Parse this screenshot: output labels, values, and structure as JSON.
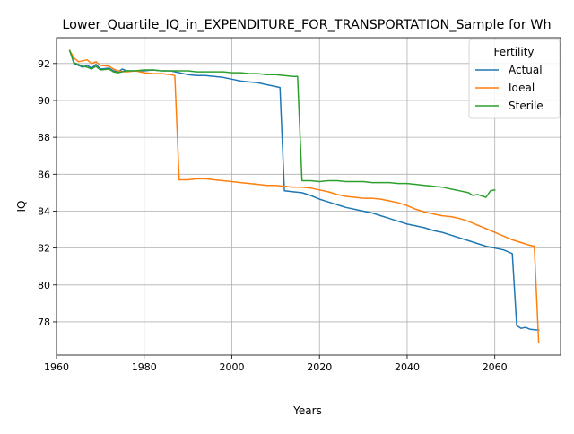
{
  "chart_data": {
    "type": "line",
    "title": "Lower_Quartile_IQ_in_EXPENDITURE_FOR_TRANSPORTATION_Sample for Wh",
    "xlabel": "Years",
    "ylabel": "IQ",
    "xlim": [
      1960,
      2075
    ],
    "ylim": [
      76.2,
      93.4
    ],
    "xticks": [
      1960,
      1980,
      2000,
      2020,
      2040,
      2060
    ],
    "yticks": [
      78,
      80,
      82,
      84,
      86,
      88,
      90,
      92
    ],
    "grid": true,
    "legend": {
      "title": "Fertility",
      "position": "top-right"
    },
    "series": [
      {
        "name": "Actual",
        "color": "#1f77b4",
        "points": [
          [
            1963,
            92.7
          ],
          [
            1964,
            92.0
          ],
          [
            1966,
            91.8
          ],
          [
            1967,
            91.9
          ],
          [
            1968,
            91.75
          ],
          [
            1969,
            91.95
          ],
          [
            1970,
            91.7
          ],
          [
            1972,
            91.75
          ],
          [
            1973,
            91.6
          ],
          [
            1974,
            91.55
          ],
          [
            1975,
            91.7
          ],
          [
            1976,
            91.6
          ],
          [
            1978,
            91.6
          ],
          [
            1980,
            91.6
          ],
          [
            1982,
            91.65
          ],
          [
            1984,
            91.6
          ],
          [
            1986,
            91.6
          ],
          [
            1988,
            91.5
          ],
          [
            1990,
            91.4
          ],
          [
            1992,
            91.35
          ],
          [
            1994,
            91.35
          ],
          [
            1996,
            91.3
          ],
          [
            1998,
            91.25
          ],
          [
            2000,
            91.15
          ],
          [
            2002,
            91.05
          ],
          [
            2004,
            91.0
          ],
          [
            2006,
            90.95
          ],
          [
            2008,
            90.85
          ],
          [
            2010,
            90.75
          ],
          [
            2011,
            90.7
          ],
          [
            2012,
            85.1
          ],
          [
            2014,
            85.05
          ],
          [
            2016,
            85.0
          ],
          [
            2018,
            84.85
          ],
          [
            2020,
            84.65
          ],
          [
            2022,
            84.5
          ],
          [
            2024,
            84.35
          ],
          [
            2026,
            84.2
          ],
          [
            2028,
            84.1
          ],
          [
            2030,
            84.0
          ],
          [
            2032,
            83.9
          ],
          [
            2034,
            83.75
          ],
          [
            2036,
            83.6
          ],
          [
            2038,
            83.45
          ],
          [
            2040,
            83.3
          ],
          [
            2042,
            83.2
          ],
          [
            2044,
            83.1
          ],
          [
            2046,
            82.95
          ],
          [
            2048,
            82.85
          ],
          [
            2050,
            82.7
          ],
          [
            2052,
            82.55
          ],
          [
            2054,
            82.4
          ],
          [
            2056,
            82.25
          ],
          [
            2058,
            82.1
          ],
          [
            2060,
            82.0
          ],
          [
            2062,
            81.9
          ],
          [
            2064,
            81.7
          ],
          [
            2065,
            77.8
          ],
          [
            2066,
            77.65
          ],
          [
            2067,
            77.7
          ],
          [
            2068,
            77.6
          ],
          [
            2070,
            77.55
          ]
        ]
      },
      {
        "name": "Ideal",
        "color": "#ff7f0e",
        "points": [
          [
            1963,
            92.7
          ],
          [
            1964,
            92.3
          ],
          [
            1965,
            92.1
          ],
          [
            1967,
            92.2
          ],
          [
            1968,
            92.0
          ],
          [
            1969,
            92.1
          ],
          [
            1970,
            91.9
          ],
          [
            1972,
            91.85
          ],
          [
            1973,
            91.7
          ],
          [
            1974,
            91.6
          ],
          [
            1976,
            91.55
          ],
          [
            1978,
            91.6
          ],
          [
            1980,
            91.5
          ],
          [
            1982,
            91.45
          ],
          [
            1984,
            91.45
          ],
          [
            1986,
            91.4
          ],
          [
            1987,
            91.35
          ],
          [
            1988,
            85.7
          ],
          [
            1990,
            85.7
          ],
          [
            1992,
            85.75
          ],
          [
            1994,
            85.75
          ],
          [
            1996,
            85.7
          ],
          [
            1998,
            85.65
          ],
          [
            2000,
            85.6
          ],
          [
            2002,
            85.55
          ],
          [
            2004,
            85.5
          ],
          [
            2006,
            85.45
          ],
          [
            2008,
            85.4
          ],
          [
            2010,
            85.4
          ],
          [
            2012,
            85.35
          ],
          [
            2014,
            85.3
          ],
          [
            2016,
            85.3
          ],
          [
            2018,
            85.25
          ],
          [
            2020,
            85.15
          ],
          [
            2022,
            85.05
          ],
          [
            2024,
            84.9
          ],
          [
            2026,
            84.8
          ],
          [
            2028,
            84.75
          ],
          [
            2030,
            84.7
          ],
          [
            2032,
            84.7
          ],
          [
            2034,
            84.65
          ],
          [
            2036,
            84.55
          ],
          [
            2038,
            84.45
          ],
          [
            2040,
            84.3
          ],
          [
            2042,
            84.1
          ],
          [
            2044,
            83.95
          ],
          [
            2046,
            83.85
          ],
          [
            2048,
            83.75
          ],
          [
            2050,
            83.7
          ],
          [
            2052,
            83.6
          ],
          [
            2054,
            83.45
          ],
          [
            2056,
            83.25
          ],
          [
            2058,
            83.05
          ],
          [
            2060,
            82.85
          ],
          [
            2062,
            82.65
          ],
          [
            2064,
            82.45
          ],
          [
            2066,
            82.3
          ],
          [
            2068,
            82.15
          ],
          [
            2069,
            82.1
          ],
          [
            2070,
            76.9
          ]
        ]
      },
      {
        "name": "Sterile",
        "color": "#2ca02c",
        "points": [
          [
            1963,
            92.7
          ],
          [
            1964,
            92.05
          ],
          [
            1966,
            91.85
          ],
          [
            1967,
            91.8
          ],
          [
            1968,
            91.7
          ],
          [
            1969,
            91.85
          ],
          [
            1970,
            91.65
          ],
          [
            1972,
            91.7
          ],
          [
            1973,
            91.55
          ],
          [
            1974,
            91.5
          ],
          [
            1976,
            91.6
          ],
          [
            1978,
            91.6
          ],
          [
            1980,
            91.65
          ],
          [
            1982,
            91.65
          ],
          [
            1984,
            91.6
          ],
          [
            1986,
            91.6
          ],
          [
            1988,
            91.6
          ],
          [
            1990,
            91.6
          ],
          [
            1992,
            91.55
          ],
          [
            1994,
            91.55
          ],
          [
            1996,
            91.55
          ],
          [
            1998,
            91.55
          ],
          [
            2000,
            91.5
          ],
          [
            2002,
            91.5
          ],
          [
            2004,
            91.45
          ],
          [
            2006,
            91.45
          ],
          [
            2008,
            91.4
          ],
          [
            2010,
            91.4
          ],
          [
            2012,
            91.35
          ],
          [
            2014,
            91.3
          ],
          [
            2015,
            91.3
          ],
          [
            2016,
            85.65
          ],
          [
            2018,
            85.65
          ],
          [
            2020,
            85.6
          ],
          [
            2022,
            85.65
          ],
          [
            2024,
            85.65
          ],
          [
            2026,
            85.6
          ],
          [
            2028,
            85.6
          ],
          [
            2030,
            85.6
          ],
          [
            2032,
            85.55
          ],
          [
            2034,
            85.55
          ],
          [
            2036,
            85.55
          ],
          [
            2038,
            85.5
          ],
          [
            2040,
            85.5
          ],
          [
            2042,
            85.45
          ],
          [
            2044,
            85.4
          ],
          [
            2046,
            85.35
          ],
          [
            2048,
            85.3
          ],
          [
            2050,
            85.2
          ],
          [
            2052,
            85.1
          ],
          [
            2054,
            85.0
          ],
          [
            2055,
            84.85
          ],
          [
            2056,
            84.9
          ],
          [
            2058,
            84.75
          ],
          [
            2059,
            85.1
          ],
          [
            2060,
            85.15
          ]
        ]
      }
    ]
  }
}
